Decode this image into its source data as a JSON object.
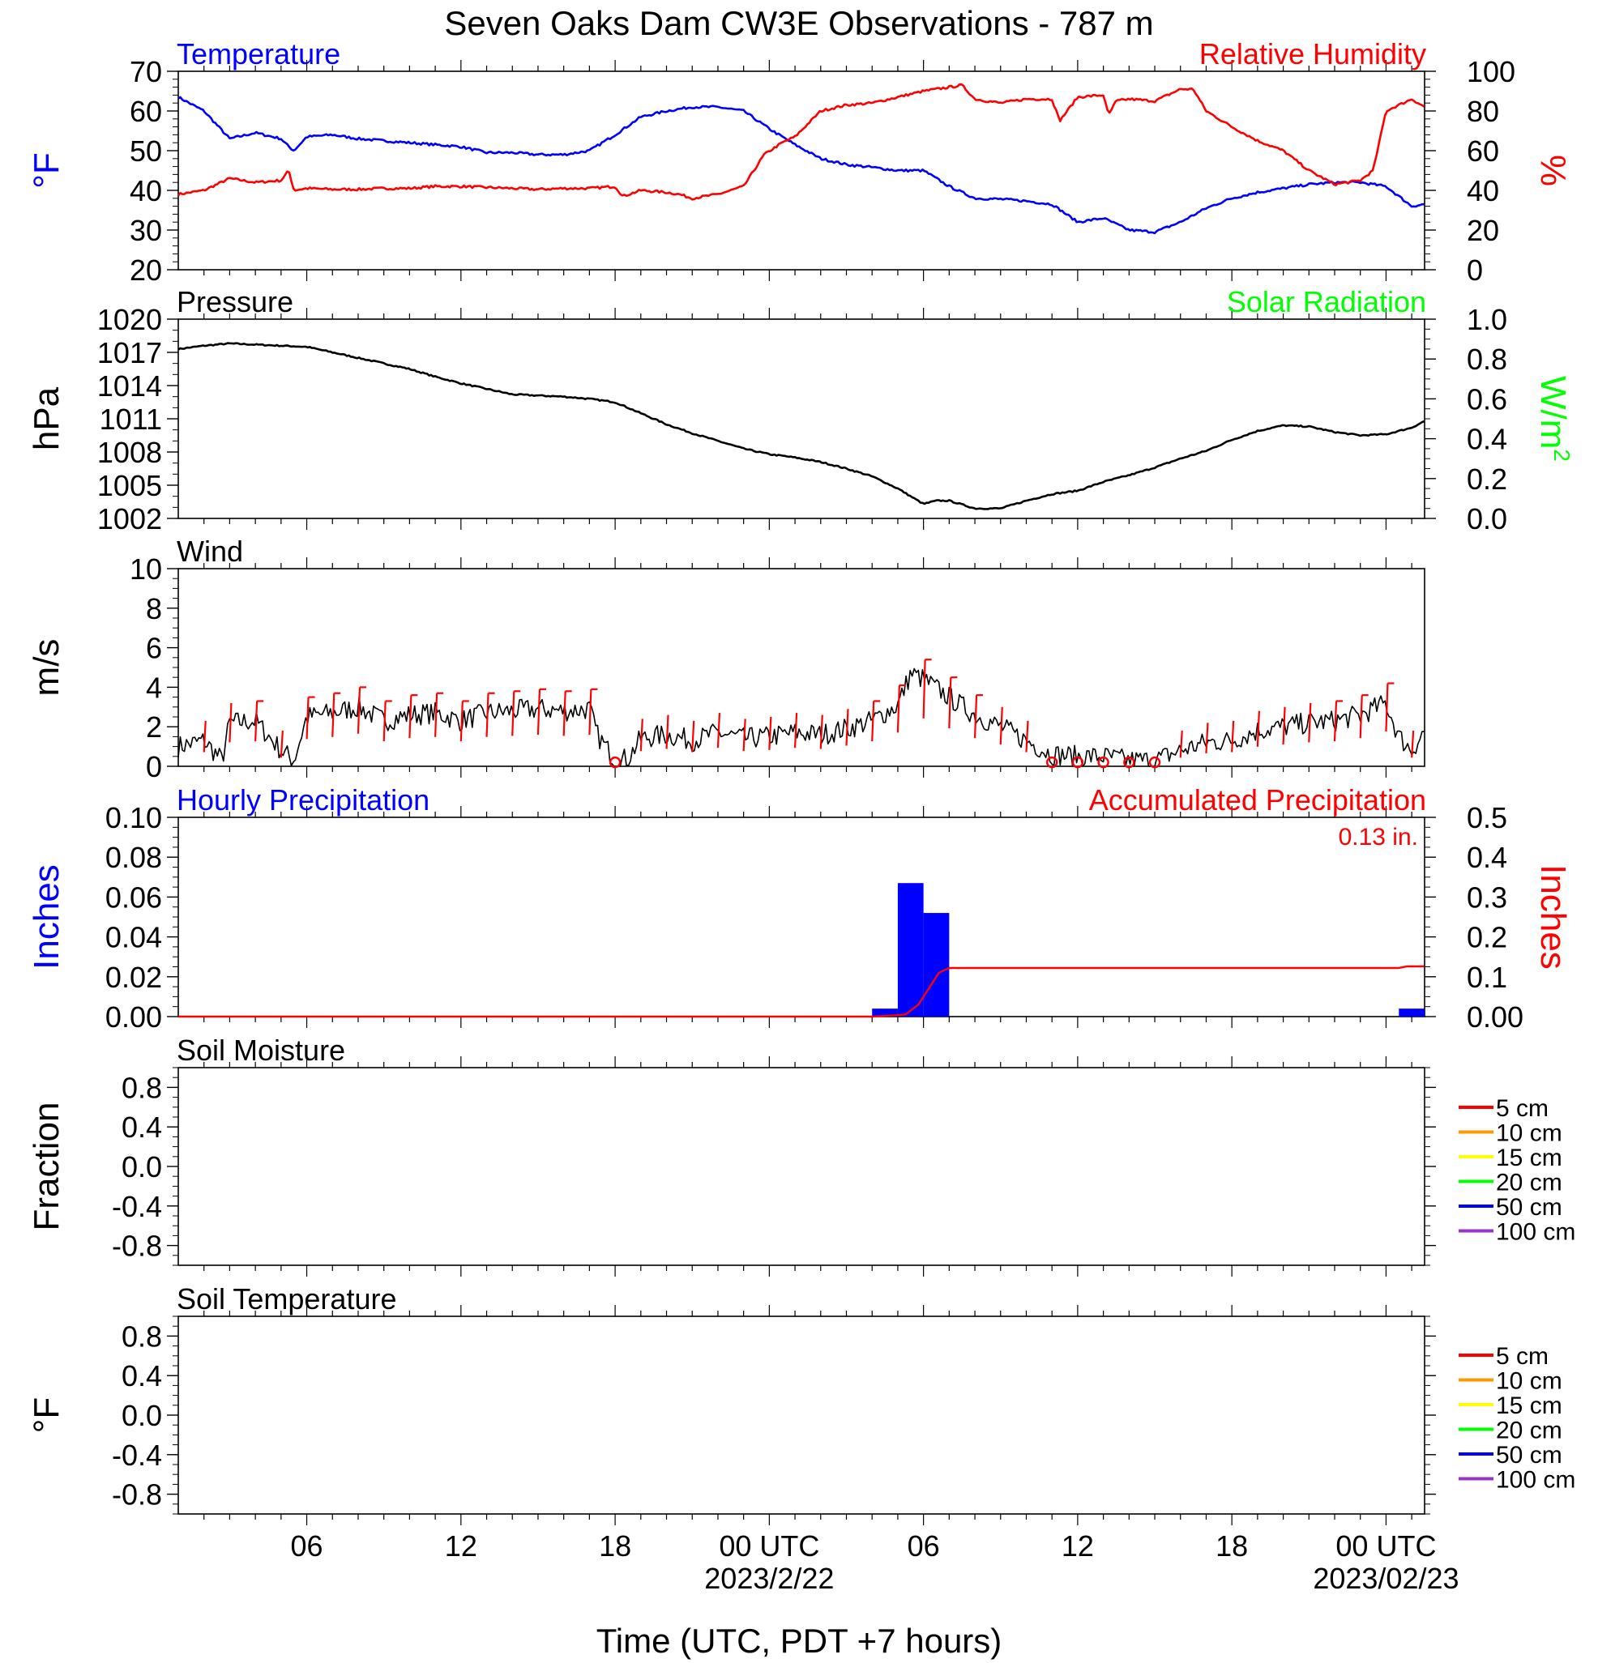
{
  "page_title": "Seven Oaks Dam CW3E Observations - 787 m",
  "x_axis": {
    "title": "Time (UTC, PDT +7 hours)",
    "range_hours": [
      0,
      48.5
    ],
    "ticks": [
      {
        "hour": 5,
        "label": "06",
        "date": ""
      },
      {
        "hour": 11,
        "label": "12",
        "date": ""
      },
      {
        "hour": 17,
        "label": "18",
        "date": ""
      },
      {
        "hour": 23,
        "label": "00 UTC",
        "date": "2023/2/22"
      },
      {
        "hour": 29,
        "label": "06",
        "date": ""
      },
      {
        "hour": 35,
        "label": "12",
        "date": ""
      },
      {
        "hour": 41,
        "label": "18",
        "date": ""
      },
      {
        "hour": 47,
        "label": "00 UTC",
        "date": "2023/02/23"
      }
    ]
  },
  "colors": {
    "temperature": "#0000ff",
    "humidity": "#ff0000",
    "pressure": "#000000",
    "solar": "#00ff00",
    "wind": "#000000",
    "wind_barb": "#ff0000",
    "hourly_precip": "#0000ff",
    "accum_precip": "#ff0000"
  },
  "panels": {
    "temperature": {
      "title_left": "Temperature",
      "title_right": "Relative Humidity",
      "ylabel_left": "°F",
      "ylabel_right": "%",
      "left_ticks": [
        "70",
        "60",
        "50",
        "40",
        "30",
        "20"
      ],
      "right_ticks": [
        "100",
        "80",
        "60",
        "40",
        "20",
        "0"
      ]
    },
    "pressure": {
      "title_left": "Pressure",
      "title_right": "Solar Radiation",
      "ylabel_left": "hPa",
      "ylabel_right": "W/m",
      "ylabel_right_sup": "2",
      "left_ticks": [
        "1020",
        "1017",
        "1014",
        "1011",
        "1008",
        "1005",
        "1002"
      ],
      "right_ticks": [
        "1.0",
        "0.8",
        "0.6",
        "0.4",
        "0.2",
        "0.0"
      ]
    },
    "wind": {
      "title_left": "Wind",
      "ylabel_left": "m/s",
      "left_ticks": [
        "10",
        "8",
        "6",
        "4",
        "2",
        "0"
      ]
    },
    "precip": {
      "title_left": "Hourly Precipitation",
      "title_right": "Accumulated Precipitation",
      "accum_total": "0.13 in.",
      "ylabel_left": "Inches",
      "ylabel_right": "Inches",
      "left_ticks": [
        "0.10",
        "0.08",
        "0.06",
        "0.04",
        "0.02",
        "0.00"
      ],
      "right_ticks": [
        "0.5",
        "0.4",
        "0.3",
        "0.2",
        "0.1",
        "0.00"
      ]
    },
    "soil_moisture": {
      "title_left": "Soil Moisture",
      "ylabel_left": "Fraction",
      "left_ticks": [
        "0.8",
        "0.4",
        "0.0",
        "-0.4",
        "-0.8"
      ],
      "legend": [
        {
          "label": "5 cm",
          "color": "#ff0000"
        },
        {
          "label": "10 cm",
          "color": "#ff9900"
        },
        {
          "label": "15 cm",
          "color": "#ffff00"
        },
        {
          "label": "20 cm",
          "color": "#00ff00"
        },
        {
          "label": "50 cm",
          "color": "#0000ff"
        },
        {
          "label": "100 cm",
          "color": "#9933cc"
        }
      ]
    },
    "soil_temperature": {
      "title_left": "Soil Temperature",
      "ylabel_left": "°F",
      "left_ticks": [
        "0.8",
        "0.4",
        "0.0",
        "-0.4",
        "-0.8"
      ],
      "legend": [
        {
          "label": "5 cm",
          "color": "#ff0000"
        },
        {
          "label": "10 cm",
          "color": "#ff9900"
        },
        {
          "label": "15 cm",
          "color": "#ffff00"
        },
        {
          "label": "20 cm",
          "color": "#00ff00"
        },
        {
          "label": "50 cm",
          "color": "#0000ff"
        },
        {
          "label": "100 cm",
          "color": "#9933cc"
        }
      ]
    }
  },
  "chart_data": [
    {
      "type": "line",
      "title": "Temperature",
      "ylabel": "°F",
      "ylim": [
        20,
        70
      ],
      "x_hours": [
        0,
        1,
        2,
        3,
        4,
        4.3,
        4.5,
        5,
        6,
        7,
        8,
        9,
        10,
        11,
        12,
        13,
        14,
        15,
        16,
        17,
        18,
        19,
        20,
        21,
        22,
        23,
        24,
        25,
        26,
        27,
        28,
        29,
        30,
        31,
        32,
        33,
        34,
        35,
        36,
        37,
        38,
        39,
        40,
        41,
        42,
        43,
        44,
        45,
        46,
        47,
        48,
        48.5
      ],
      "values": [
        63.5,
        60,
        53,
        54.5,
        53,
        51,
        50,
        53.5,
        54,
        53,
        52.5,
        52,
        51.5,
        51,
        49.5,
        49.5,
        49,
        49,
        50,
        54,
        58.5,
        60,
        61,
        61,
        60,
        55.5,
        51.5,
        48,
        46.5,
        45.8,
        45,
        45,
        41,
        38,
        37.8,
        37.3,
        36.5,
        32,
        33,
        30,
        29.5,
        32,
        35.5,
        38,
        39.5,
        40.5,
        41.5,
        42,
        42,
        41,
        36,
        36.5
      ]
    },
    {
      "type": "line",
      "title": "Relative Humidity",
      "ylabel": "%",
      "ylim": [
        0,
        100
      ],
      "x_hours": [
        0,
        1,
        2,
        3,
        4,
        4.3,
        4.5,
        5,
        6,
        7,
        8,
        9,
        10,
        11,
        12,
        13,
        14,
        15,
        16,
        17,
        17.3,
        18,
        19,
        19.5,
        20,
        21,
        22,
        22.8,
        23.5,
        24,
        25,
        26,
        27,
        28,
        29,
        30,
        30.5,
        31,
        32,
        33,
        34,
        34.3,
        35,
        36,
        36.2,
        36.5,
        37,
        38,
        39,
        39.5,
        40,
        41,
        42,
        43,
        44,
        45,
        46,
        46.5,
        47,
        48,
        48.5
      ],
      "values": [
        38,
        40,
        46,
        44,
        45,
        50,
        40,
        41,
        40.5,
        40.5,
        41,
        41,
        42,
        42,
        41.5,
        41,
        40.5,
        41,
        41,
        42,
        37,
        40,
        39,
        38,
        36,
        38,
        42,
        58,
        64,
        67,
        80,
        83,
        84,
        87,
        90,
        92,
        93,
        86,
        84,
        86,
        86,
        75,
        87,
        88,
        78,
        85,
        86,
        85,
        91,
        91,
        80,
        72,
        65,
        60,
        50,
        43,
        45,
        50,
        80,
        86,
        82
      ]
    },
    {
      "type": "line",
      "title": "Pressure",
      "ylabel": "hPa",
      "ylim": [
        1002,
        1020
      ],
      "x_hours": [
        0,
        1,
        2,
        3,
        4,
        5,
        6,
        7,
        8,
        9,
        10,
        11,
        12,
        13,
        14,
        15,
        16,
        17,
        18,
        19,
        20,
        21,
        22,
        23,
        24,
        25,
        26,
        27,
        28,
        29,
        29.5,
        30,
        31,
        32,
        33,
        34,
        35,
        36,
        37,
        38,
        39,
        40,
        41,
        42,
        43,
        44,
        45,
        46,
        47,
        48,
        48.5
      ],
      "values": [
        1017.3,
        1017.6,
        1017.8,
        1017.7,
        1017.6,
        1017.5,
        1017.0,
        1016.5,
        1016.0,
        1015.5,
        1014.8,
        1014.2,
        1013.7,
        1013.2,
        1013.1,
        1013.0,
        1012.8,
        1012.5,
        1011.5,
        1010.5,
        1009.7,
        1009.0,
        1008.3,
        1007.8,
        1007.5,
        1007.1,
        1006.5,
        1005.8,
        1004.7,
        1003.3,
        1003.6,
        1003.6,
        1002.9,
        1002.9,
        1003.6,
        1004.2,
        1004.5,
        1005.3,
        1005.9,
        1006.6,
        1007.4,
        1008.1,
        1009.1,
        1009.9,
        1010.4,
        1010.3,
        1009.8,
        1009.5,
        1009.6,
        1010.2,
        1010.8
      ]
    },
    {
      "type": "line",
      "title": "Wind",
      "ylabel": "m/s",
      "ylim": [
        0,
        10
      ],
      "x_hours": [
        0,
        1,
        1.7,
        2,
        3,
        4,
        4.5,
        5,
        6,
        7,
        8,
        9,
        10,
        11,
        12,
        13,
        14,
        15,
        16,
        16.3,
        17,
        17.5,
        18,
        19,
        20,
        21,
        22,
        23,
        24,
        25,
        26,
        27,
        28,
        28.5,
        29,
        30,
        31,
        32,
        33,
        34,
        35,
        36,
        37,
        38,
        39,
        40,
        41,
        42,
        43,
        44,
        45,
        46,
        47,
        47.5,
        48,
        48.5
      ],
      "values": [
        1.0,
        1.3,
        0.3,
        2.2,
        2.3,
        0.8,
        0.3,
        2.5,
        2.7,
        3.0,
        2.3,
        2.6,
        2.7,
        2.3,
        2.7,
        2.8,
        2.9,
        2.8,
        2.9,
        1.6,
        0.3,
        0.4,
        1.4,
        1.6,
        1.3,
        1.7,
        1.4,
        1.5,
        1.7,
        1.6,
        1.9,
        2.3,
        3.1,
        4.7,
        4.4,
        3.5,
        2.6,
        2.0,
        1.3,
        0.6,
        0.5,
        0.5,
        0.3,
        0.3,
        0.8,
        1.2,
        1.3,
        1.8,
        2.0,
        2.2,
        2.3,
        2.6,
        3.2,
        1.5,
        0.8,
        1.8
      ]
    },
    {
      "type": "bar",
      "title": "Hourly Precipitation",
      "ylabel": "Inches",
      "ylim": [
        0,
        0.1
      ],
      "bars": [
        {
          "start_hour": 27,
          "end_hour": 28,
          "value": 0.004
        },
        {
          "start_hour": 28,
          "end_hour": 29,
          "value": 0.067
        },
        {
          "start_hour": 29,
          "end_hour": 30,
          "value": 0.052
        },
        {
          "start_hour": 47.5,
          "end_hour": 48.5,
          "value": 0.004
        }
      ]
    },
    {
      "type": "line",
      "title": "Accumulated Precipitation",
      "ylabel": "Inches",
      "ylim": [
        0,
        0.5
      ],
      "x_hours": [
        0,
        27,
        28.3,
        28.8,
        29.2,
        29.6,
        30,
        47.5,
        47.8,
        48.5
      ],
      "values": [
        0,
        0,
        0.005,
        0.03,
        0.07,
        0.11,
        0.122,
        0.122,
        0.126,
        0.126
      ]
    }
  ]
}
